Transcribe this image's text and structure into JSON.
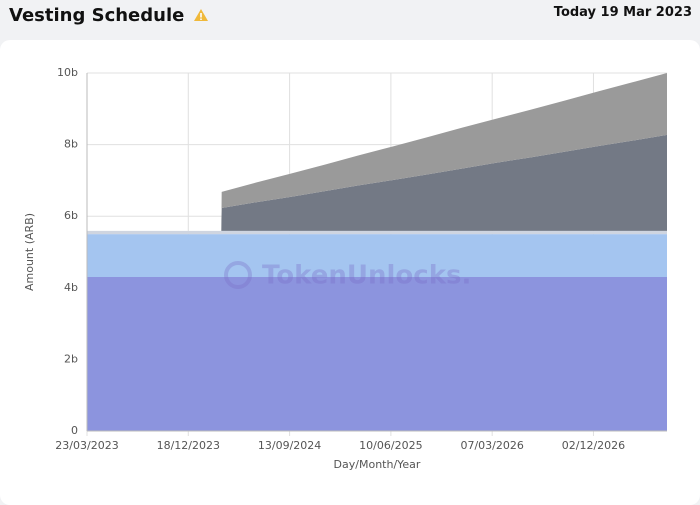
{
  "header": {
    "title": "Vesting Schedule",
    "date": "Today 19 Mar 2023"
  },
  "chart_data": {
    "type": "stacked-area",
    "x_label": "Day/Month/Year",
    "y_label": "Amount (ARB)",
    "watermark": "TokenUnlocks.",
    "x": [
      "23/03/2023",
      "15/03/2024",
      "16/03/2024",
      "16/06/2024",
      "16/09/2024",
      "16/12/2024",
      "16/03/2025",
      "16/06/2025",
      "16/09/2025",
      "16/12/2025",
      "16/03/2026",
      "16/06/2026",
      "16/09/2026",
      "16/12/2026",
      "16/03/2027",
      "16/06/2027"
    ],
    "series": [
      {
        "color": "#8c94de",
        "values": [
          4.3,
          4.3,
          4.3,
          4.3,
          4.3,
          4.3,
          4.3,
          4.3,
          4.3,
          4.3,
          4.3,
          4.3,
          4.3,
          4.3,
          4.3,
          4.3
        ]
      },
      {
        "color": "#a4c5f0",
        "values": [
          1.2,
          1.2,
          1.2,
          1.2,
          1.2,
          1.2,
          1.2,
          1.2,
          1.2,
          1.2,
          1.2,
          1.2,
          1.2,
          1.2,
          1.2,
          1.2
        ]
      },
      {
        "color": "#cfd5e0",
        "values": [
          0.09,
          0.09,
          0.09,
          0.09,
          0.09,
          0.09,
          0.09,
          0.09,
          0.09,
          0.09,
          0.09,
          0.09,
          0.09,
          0.09,
          0.09,
          0.09
        ]
      },
      {
        "color": "#737985",
        "values": [
          0,
          0,
          0.64,
          0.8,
          0.95,
          1.11,
          1.27,
          1.42,
          1.58,
          1.74,
          1.9,
          2.05,
          2.21,
          2.37,
          2.52,
          2.68
        ]
      },
      {
        "color": "#9a9a9a",
        "values": [
          0,
          0,
          0.45,
          0.55,
          0.65,
          0.74,
          0.84,
          0.94,
          1.04,
          1.14,
          1.23,
          1.33,
          1.43,
          1.53,
          1.63,
          1.73
        ]
      }
    ],
    "xlim": [
      "23/03/2023",
      "16/06/2027"
    ],
    "xticks": [
      "23/03/2023",
      "18/12/2023",
      "13/09/2024",
      "10/06/2025",
      "07/03/2026",
      "02/12/2026"
    ],
    "ylim": [
      0,
      10
    ],
    "yticks": [
      0,
      {
        "value": 2,
        "label": "2b"
      },
      {
        "value": 4,
        "label": "4b"
      },
      {
        "value": 6,
        "label": "6b"
      },
      {
        "value": 8,
        "label": "8b"
      },
      {
        "value": 10,
        "label": "10b"
      }
    ],
    "grid": true
  }
}
